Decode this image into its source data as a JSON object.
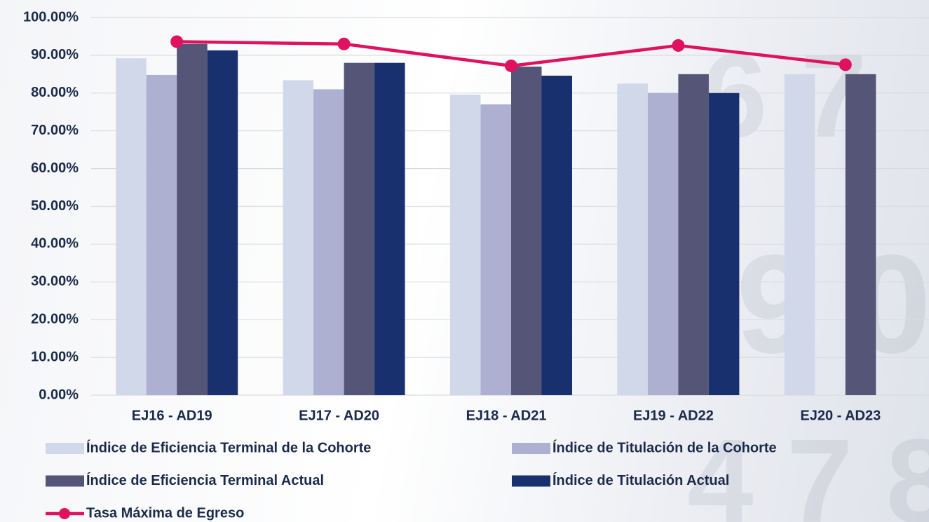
{
  "chart_data": {
    "type": "bar",
    "categories": [
      "EJ16 - AD19",
      "EJ17 - AD20",
      "EJ18 - AD21",
      "EJ19 - AD22",
      "EJ20 - AD23"
    ],
    "series": [
      {
        "name": "Índice de Eficiencia Terminal de la Cohorte",
        "color": "#d0d8ea",
        "values": [
          89.2,
          83.4,
          79.6,
          82.5,
          85
        ]
      },
      {
        "name": "Índice de Titulación de la Cohorte",
        "color": "#adb0d1",
        "values": [
          84.8,
          81,
          77,
          80,
          null
        ]
      },
      {
        "name": "Índice de Eficiencia Terminal Actual",
        "color": "#555577",
        "values": [
          93,
          88,
          87,
          85,
          85
        ]
      },
      {
        "name": "Índice de Titulación Actual",
        "color": "#18306e",
        "values": [
          91.3,
          88,
          84.6,
          80,
          null
        ]
      },
      {
        "name": "Tasa Máxima de Egreso",
        "color": "#e0115f",
        "type": "line",
        "values": [
          93.6,
          93,
          87.2,
          92.6,
          87.5
        ]
      }
    ],
    "ylim": [
      0,
      100
    ],
    "yticks": [
      {
        "value": 0,
        "label": "0.00%"
      },
      {
        "value": 10,
        "label": "10.00%"
      },
      {
        "value": 20,
        "label": "20.00%"
      },
      {
        "value": 30,
        "label": "30.00%"
      },
      {
        "value": 40,
        "label": "40.00%"
      },
      {
        "value": 50,
        "label": "50.00%"
      },
      {
        "value": 60,
        "label": "60.00%"
      },
      {
        "value": 70,
        "label": "70.00%"
      },
      {
        "value": 80,
        "label": "80.00%"
      },
      {
        "value": 90,
        "label": "90.00%"
      },
      {
        "value": 100,
        "label": "100.00%"
      }
    ],
    "grid": true
  }
}
